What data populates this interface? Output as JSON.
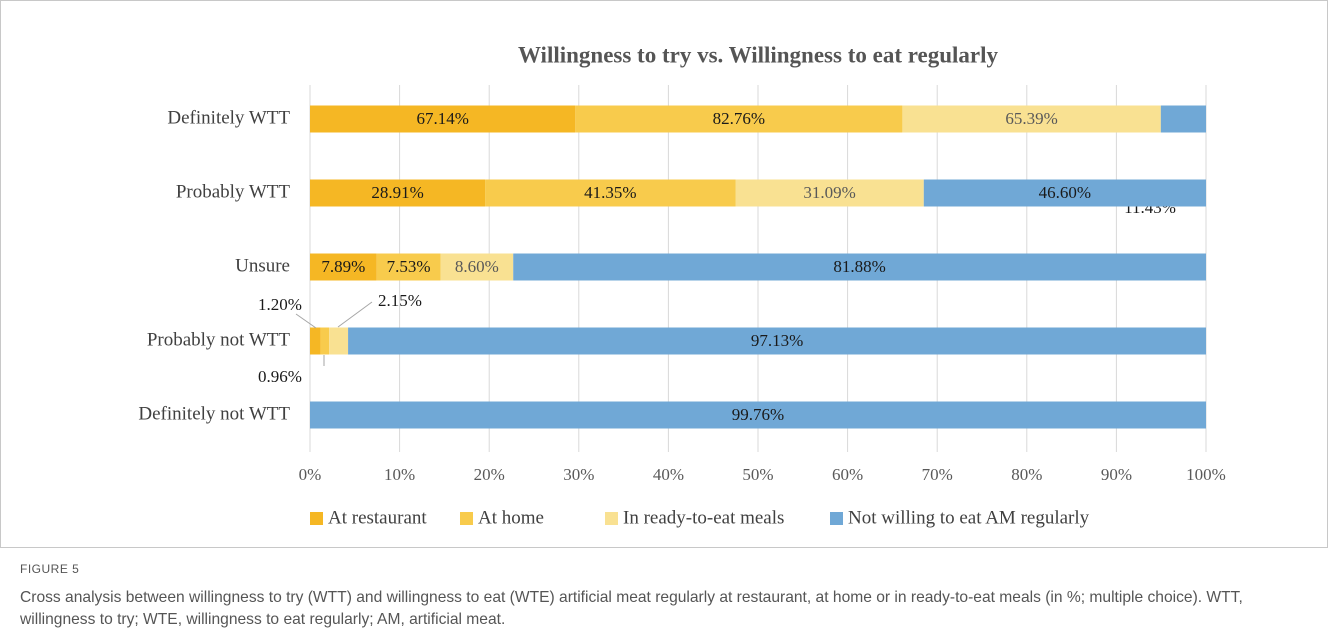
{
  "chart_data": {
    "type": "bar",
    "orientation": "horizontal",
    "stacking": "percent",
    "title": "Willingness to try vs. Willingness to eat regularly",
    "categories": [
      "Definitely WTT",
      "Probably WTT",
      "Unsure",
      "Probably not WTT",
      "Definitely not WTT"
    ],
    "series": [
      {
        "name": "At restaurant",
        "color": "#f5b724",
        "values": [
          67.14,
          28.91,
          7.89,
          1.2,
          null
        ],
        "value_labels": [
          "67.14%",
          "28.91%",
          "7.89%",
          "1.20%",
          null
        ]
      },
      {
        "name": "At home",
        "color": "#f8cb4c",
        "values": [
          82.76,
          41.35,
          7.53,
          0.96,
          null
        ],
        "value_labels": [
          "82.76%",
          "41.35%",
          "7.53%",
          "0.96%",
          null
        ]
      },
      {
        "name": "In ready-to-eat meals",
        "color": "#f9e192",
        "values": [
          65.39,
          31.09,
          8.6,
          2.15,
          null
        ],
        "value_labels": [
          "65.39%",
          "31.09%",
          "8.60%",
          "2.15%",
          null
        ]
      },
      {
        "name": "Not willing to eat AM regularly",
        "color": "#70a8d6",
        "values": [
          11.43,
          46.6,
          81.88,
          97.13,
          99.76
        ],
        "value_labels": [
          "11.43%",
          "46.60%",
          "81.88%",
          "97.13%",
          "99.76%"
        ]
      }
    ],
    "xlim": [
      0,
      100
    ],
    "xticks": [
      {
        "value": 0,
        "label": "0%"
      },
      {
        "value": 10,
        "label": "10%"
      },
      {
        "value": 20,
        "label": "20%"
      },
      {
        "value": 30,
        "label": "30%"
      },
      {
        "value": 40,
        "label": "40%"
      },
      {
        "value": 50,
        "label": "50%"
      },
      {
        "value": 60,
        "label": "60%"
      },
      {
        "value": 70,
        "label": "70%"
      },
      {
        "value": 80,
        "label": "80%"
      },
      {
        "value": 90,
        "label": "90%"
      },
      {
        "value": 100,
        "label": "100%"
      }
    ],
    "grid": true,
    "legend": "bottom"
  },
  "figure": {
    "label": "FIGURE 5",
    "caption": "Cross analysis between willingness to try (WTT) and willingness to eat (WTE) artificial meat regularly at restaurant, at home or in ready-to-eat meals (in %; multiple choice). WTT, willingness to try; WTE, willingness to eat regularly; AM, artificial meat."
  }
}
